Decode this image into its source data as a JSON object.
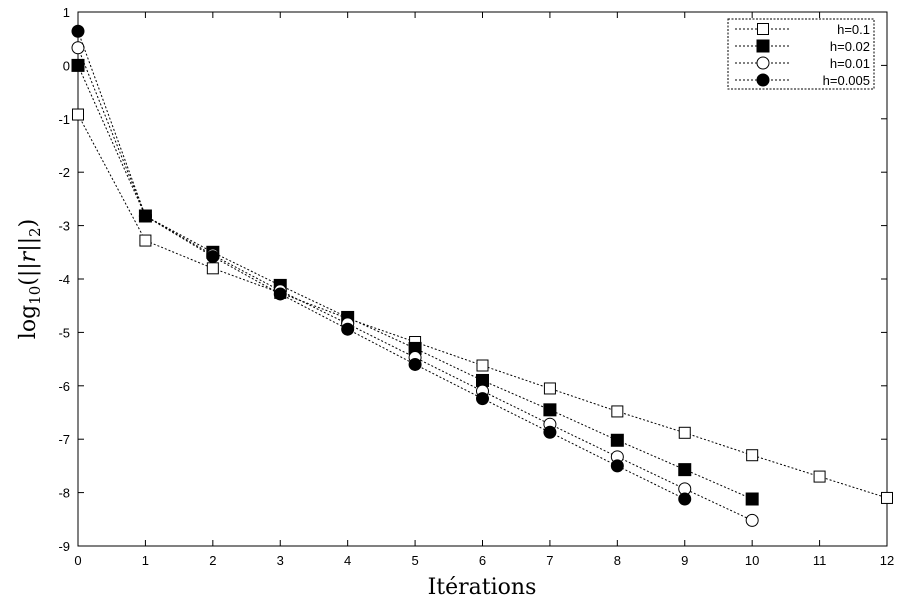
{
  "chart_data": {
    "type": "line",
    "xlabel": "Itérations",
    "ylabel": "log10(||r||2)",
    "xlim": [
      0,
      12
    ],
    "ylim": [
      -9,
      1
    ],
    "x_ticks": [
      0,
      1,
      2,
      3,
      4,
      5,
      6,
      7,
      8,
      9,
      10,
      11,
      12
    ],
    "y_ticks": [
      1,
      0,
      -1,
      -2,
      -3,
      -4,
      -5,
      -6,
      -7,
      -8,
      -9
    ],
    "grid": false,
    "legend_position": "top-right",
    "series": [
      {
        "name": "h=0.1",
        "marker": "square-open",
        "x": [
          0,
          1,
          2,
          3,
          4,
          5,
          6,
          7,
          8,
          9,
          10,
          11,
          12
        ],
        "y": [
          -0.92,
          -3.28,
          -3.8,
          -4.26,
          -4.74,
          -5.18,
          -5.62,
          -6.05,
          -6.48,
          -6.88,
          -7.3,
          -7.7,
          -8.1
        ]
      },
      {
        "name": "h=0.02",
        "marker": "square-filled",
        "x": [
          0,
          1,
          2,
          3,
          4,
          5,
          6,
          7,
          8,
          9,
          10
        ],
        "y": [
          0.0,
          -2.82,
          -3.5,
          -4.12,
          -4.72,
          -5.3,
          -5.9,
          -6.45,
          -7.02,
          -7.57,
          -8.12
        ]
      },
      {
        "name": "h=0.01",
        "marker": "circle-open",
        "x": [
          0,
          1,
          2,
          3,
          4,
          5,
          6,
          7,
          8,
          9,
          10
        ],
        "y": [
          0.33,
          -2.82,
          -3.55,
          -4.22,
          -4.84,
          -5.47,
          -6.1,
          -6.72,
          -7.33,
          -7.93,
          -8.52
        ]
      },
      {
        "name": "h=0.005",
        "marker": "circle-filled",
        "x": [
          0,
          1,
          2,
          3,
          4,
          5,
          6,
          7,
          8,
          9
        ],
        "y": [
          0.64,
          -2.82,
          -3.58,
          -4.28,
          -4.94,
          -5.6,
          -6.24,
          -6.87,
          -7.5,
          -8.12
        ]
      }
    ]
  }
}
